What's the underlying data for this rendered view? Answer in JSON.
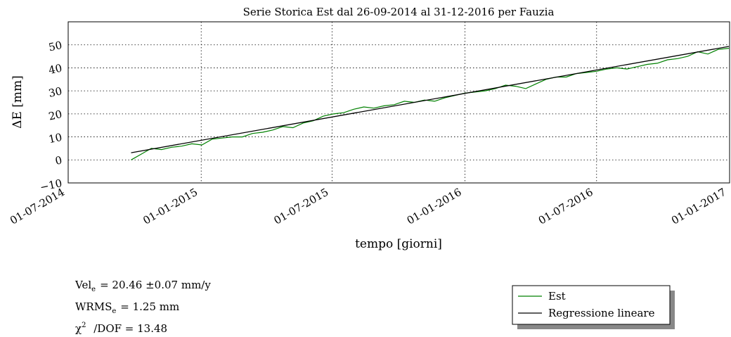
{
  "chart_data": {
    "type": "line",
    "title": "Serie Storica Est dal 26-09-2014 al 31-12-2016 per Fauzia",
    "x_label": "tempo [giorni]",
    "y_label": "ΔE  [mm]",
    "xlim": [
      "01-07-2014",
      "01-01-2017"
    ],
    "xticks": [
      "01-07-2014",
      "01-01-2015",
      "01-07-2015",
      "01-01-2016",
      "01-07-2016",
      "01-01-2017"
    ],
    "ylim": [
      -10,
      60
    ],
    "yticks": [
      {
        "value": -10,
        "label": "−10"
      },
      0,
      10,
      20,
      30,
      40,
      50
    ],
    "grid": true,
    "series": [
      {
        "name": "Est",
        "color": "#008000",
        "x": [
          "26-09-2014",
          "10-10-2014",
          "24-10-2014",
          "07-11-2014",
          "21-11-2014",
          "05-12-2014",
          "19-12-2014",
          "02-01-2015",
          "16-01-2015",
          "30-01-2015",
          "13-02-2015",
          "27-02-2015",
          "13-03-2015",
          "27-03-2015",
          "10-04-2015",
          "24-04-2015",
          "08-05-2015",
          "22-05-2015",
          "05-06-2015",
          "19-06-2015",
          "03-07-2015",
          "17-07-2015",
          "31-07-2015",
          "14-08-2015",
          "28-08-2015",
          "11-09-2015",
          "25-09-2015",
          "09-10-2015",
          "23-10-2015",
          "06-11-2015",
          "20-11-2015",
          "04-12-2015",
          "18-12-2015",
          "01-01-2016",
          "15-01-2016",
          "29-01-2016",
          "12-02-2016",
          "26-02-2016",
          "11-03-2016",
          "25-03-2016",
          "08-04-2016",
          "22-04-2016",
          "06-05-2016",
          "20-05-2016",
          "03-06-2016",
          "17-06-2016",
          "01-07-2016",
          "15-07-2016",
          "29-07-2016",
          "12-08-2016",
          "26-08-2016",
          "09-09-2016",
          "23-09-2016",
          "07-10-2016",
          "21-10-2016",
          "04-11-2016",
          "18-11-2016",
          "02-12-2016",
          "16-12-2016",
          "31-12-2016"
        ],
        "values": [
          0,
          2.5,
          5,
          4.5,
          5.5,
          6,
          7,
          6.5,
          9,
          9.5,
          10,
          10,
          11.5,
          12,
          13,
          14.5,
          14,
          16,
          17,
          19,
          20,
          20.5,
          22,
          23,
          22.5,
          23.5,
          24,
          25.5,
          25,
          26,
          25.5,
          27,
          28,
          29,
          29.5,
          30,
          31,
          32.5,
          32,
          31,
          33,
          35,
          36,
          36,
          37.5,
          38,
          38.5,
          39.5,
          40,
          39.5,
          40.5,
          41.5,
          42,
          43.5,
          44,
          45,
          47,
          46,
          48,
          48.5
        ]
      },
      {
        "name": "Regressione lineare",
        "color": "#000000",
        "x": [
          "26-09-2014",
          "31-12-2016"
        ],
        "values": [
          3.1,
          49.3
        ]
      }
    ],
    "annotations": [
      {
        "label": "Vel",
        "sub": "e",
        "text": "=  20.46 ±0.07  mm/y"
      },
      {
        "label": "WRMS",
        "sub": "e",
        "text": "=  1.25  mm"
      },
      {
        "label": "χ",
        "sup": "2",
        "text": " /DOF  =  13.48"
      }
    ]
  }
}
